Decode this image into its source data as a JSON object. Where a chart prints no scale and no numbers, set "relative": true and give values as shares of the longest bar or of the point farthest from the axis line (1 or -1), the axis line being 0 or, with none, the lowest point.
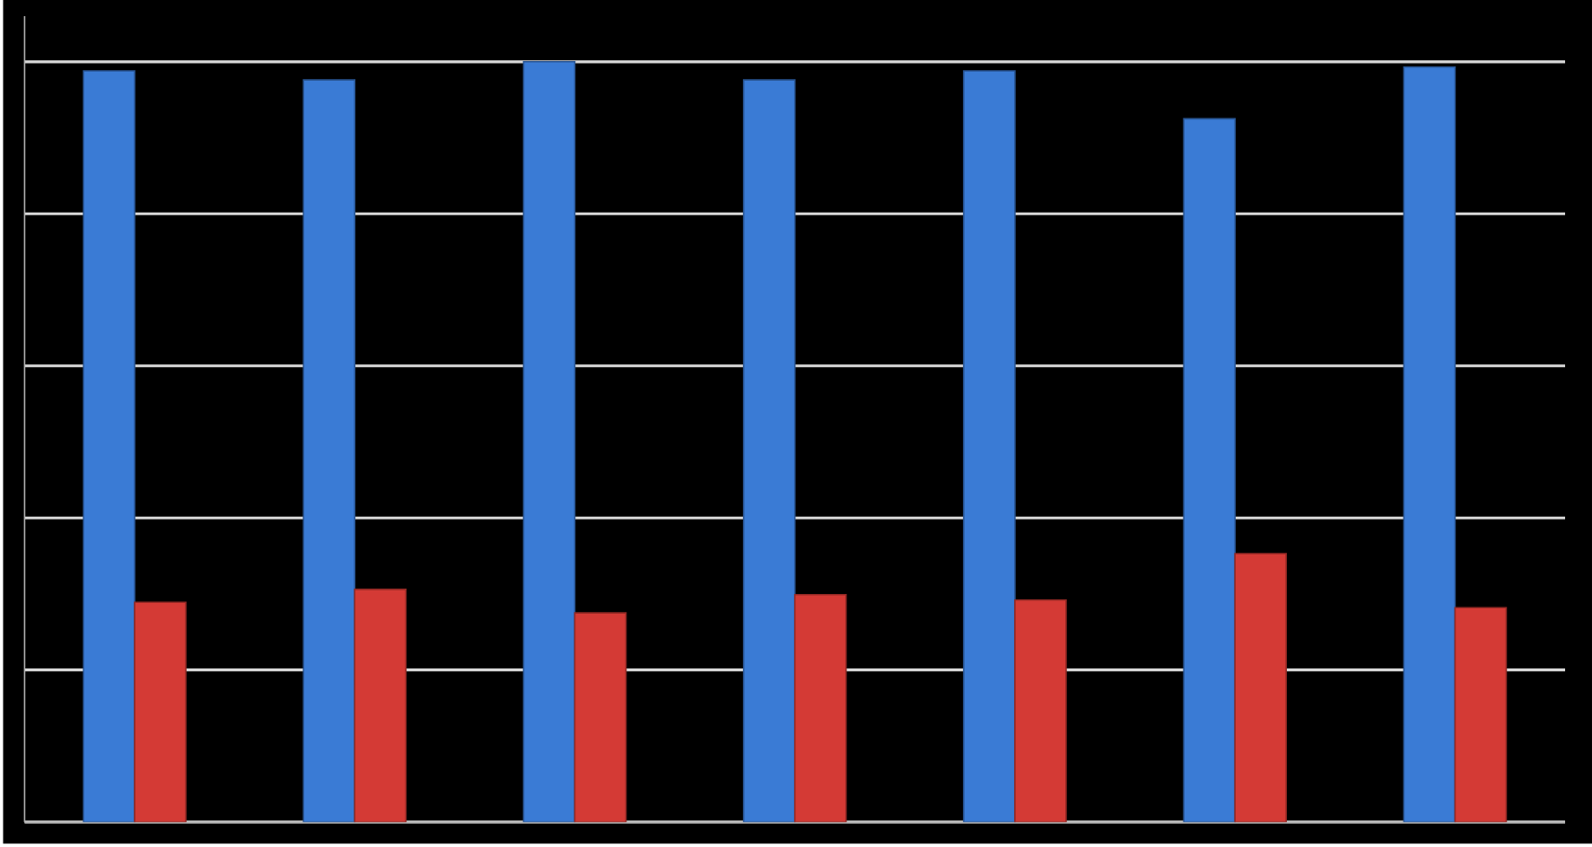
{
  "chart_data": {
    "type": "bar",
    "relative": true,
    "grid": "y",
    "categories": [
      null,
      null,
      null,
      null,
      null,
      null,
      null
    ],
    "series": [
      {
        "color": "#3a7bd5",
        "values": [
          0.988,
          0.976,
          1,
          0.976,
          0.988,
          0.925,
          0.993
        ]
      },
      {
        "color": "#d43a35",
        "values": [
          0.289,
          0.306,
          0.275,
          0.299,
          0.292,
          0.353,
          0.282
        ]
      }
    ]
  }
}
